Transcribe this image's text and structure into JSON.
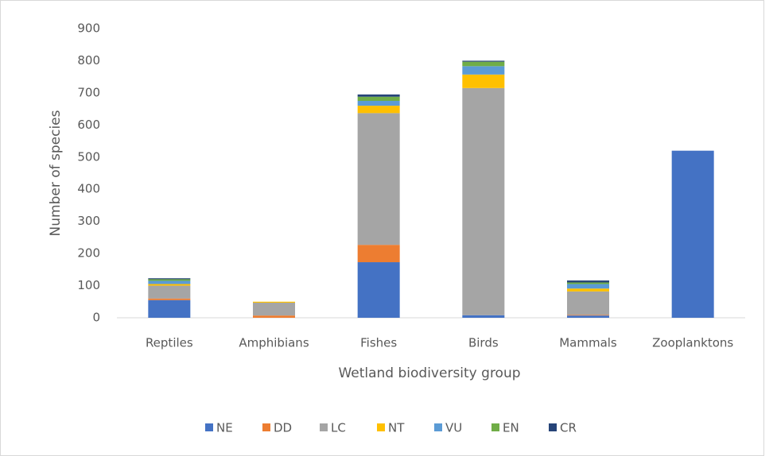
{
  "chart_data": {
    "type": "stacked_bar",
    "x_label": "Wetland biodiversity group",
    "y_label": "Number of species",
    "categories": [
      "Reptiles",
      "Amphibians",
      "Fishes",
      "Birds",
      "Mammals",
      "Zooplanktons"
    ],
    "series": [
      {
        "name": "NE",
        "color": "#4472c4",
        "values": [
          55,
          0,
          173,
          8,
          7,
          520
        ]
      },
      {
        "name": "DD",
        "color": "#ed7d31",
        "values": [
          5,
          7,
          54,
          0,
          2,
          0
        ]
      },
      {
        "name": "LC",
        "color": "#a5a5a5",
        "values": [
          40,
          40,
          410,
          707,
          73,
          0
        ]
      },
      {
        "name": "NT",
        "color": "#ffc000",
        "values": [
          5,
          3,
          23,
          42,
          9,
          0
        ]
      },
      {
        "name": "VU",
        "color": "#5b9bd5",
        "values": [
          10,
          0,
          15,
          26,
          14,
          0
        ]
      },
      {
        "name": "EN",
        "color": "#70ad47",
        "values": [
          5,
          0,
          13,
          14,
          5,
          0
        ]
      },
      {
        "name": "CR",
        "color": "#264478",
        "values": [
          3,
          0,
          7,
          3,
          6,
          0
        ]
      }
    ],
    "ylim": [
      0,
      900
    ],
    "yticks": [
      0,
      100,
      200,
      300,
      400,
      500,
      600,
      700,
      800,
      900
    ],
    "legend": "bottom"
  }
}
